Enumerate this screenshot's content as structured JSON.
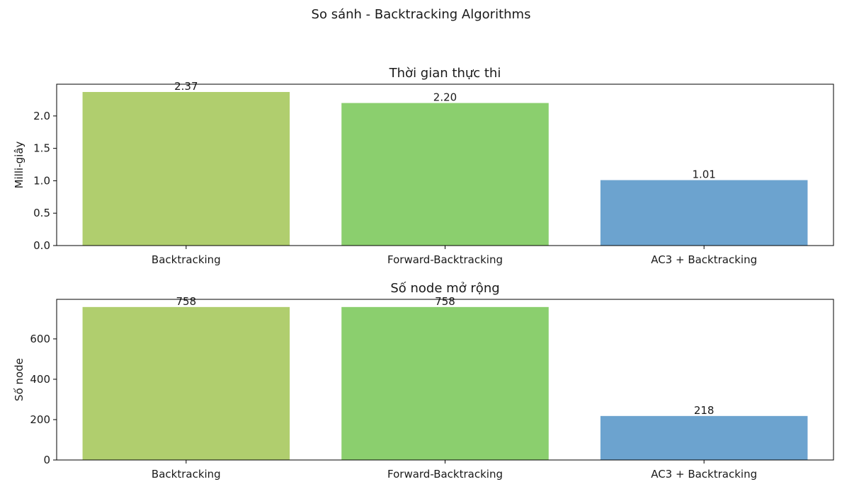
{
  "figure_title": "So sánh - Backtracking Algorithms",
  "chart_data": [
    {
      "type": "bar",
      "title": "Thời gian thực thi",
      "xlabel": "",
      "ylabel": "Milli-giây",
      "categories": [
        "Backtracking",
        "Forward-Backtracking",
        "AC3 + Backtracking"
      ],
      "values": [
        2.37,
        2.2,
        1.01
      ],
      "value_labels": [
        "2.37",
        "2.20",
        "1.01"
      ],
      "ylim": [
        0,
        2.49
      ],
      "yticks": [
        0.0,
        0.5,
        1.0,
        1.5,
        2.0
      ],
      "ytick_labels": [
        "0.0",
        "0.5",
        "1.0",
        "1.5",
        "2.0"
      ],
      "colors": [
        "#b0ce6e",
        "#8bcf6e",
        "#6ca3cf"
      ],
      "grid": false,
      "legend": "none"
    },
    {
      "type": "bar",
      "title": "Số node mở rộng",
      "xlabel": "",
      "ylabel": "Số node",
      "categories": [
        "Backtracking",
        "Forward-Backtracking",
        "AC3 + Backtracking"
      ],
      "values": [
        758,
        758,
        218
      ],
      "value_labels": [
        "758",
        "758",
        "218"
      ],
      "ylim": [
        0,
        796
      ],
      "yticks": [
        0,
        200,
        400,
        600
      ],
      "ytick_labels": [
        "0",
        "200",
        "400",
        "600"
      ],
      "colors": [
        "#b0ce6e",
        "#8bcf6e",
        "#6ca3cf"
      ],
      "grid": false,
      "legend": "none"
    }
  ]
}
